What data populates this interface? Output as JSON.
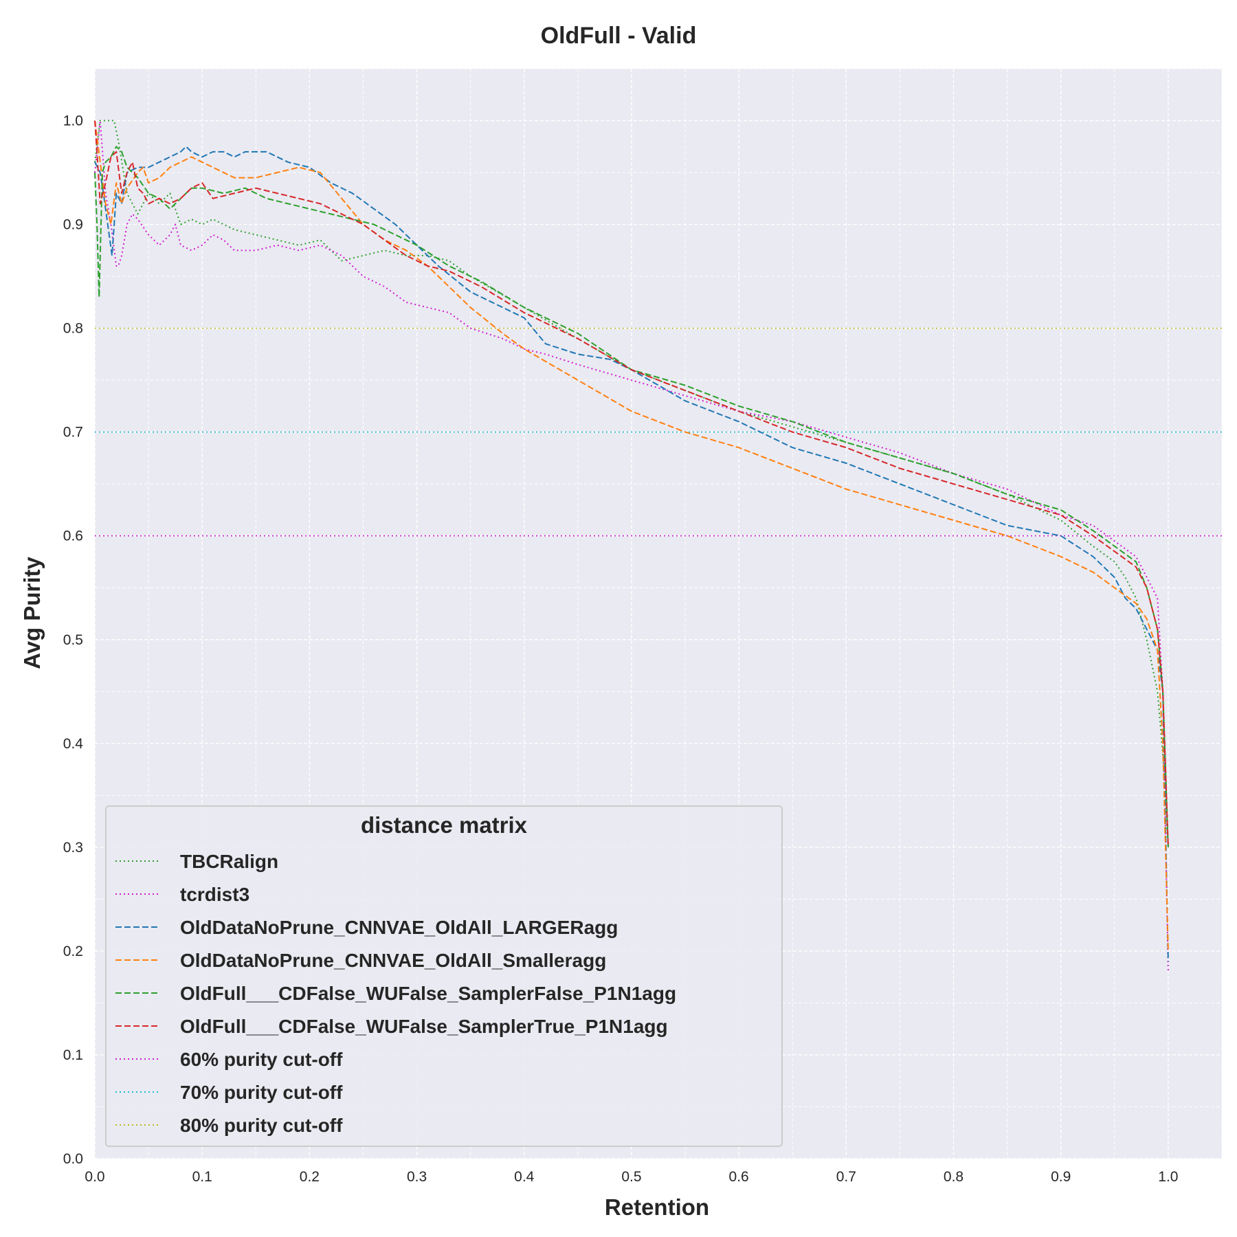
{
  "chart_data": {
    "type": "line",
    "title": "OldFull - Valid",
    "xlabel": "Retention",
    "ylabel": "Avg Purity",
    "xlim": [
      0.0,
      1.05
    ],
    "ylim": [
      0.0,
      1.05
    ],
    "xticks": [
      0.0,
      0.1,
      0.2,
      0.3,
      0.4,
      0.5,
      0.6,
      0.7,
      0.8,
      0.9,
      1.0
    ],
    "yticks": [
      0.0,
      0.1,
      0.2,
      0.3,
      0.4,
      0.5,
      0.6,
      0.7,
      0.8,
      0.9,
      1.0
    ],
    "xtick_labels": [
      "0.0",
      "0.1",
      "0.2",
      "0.3",
      "0.4",
      "0.5",
      "0.6",
      "0.7",
      "0.8",
      "0.9",
      "1.0"
    ],
    "ytick_labels": [
      "0.0",
      "0.1",
      "0.2",
      "0.3",
      "0.4",
      "0.5",
      "0.6",
      "0.7",
      "0.8",
      "0.9",
      "1.0"
    ],
    "grid": true,
    "legend_title": "distance matrix",
    "legend_position": "lower-left",
    "series": [
      {
        "name": "TBCRalign",
        "color": "#2ca02c",
        "style": "dotted",
        "x": [
          0.0,
          0.005,
          0.01,
          0.018,
          0.022,
          0.03,
          0.04,
          0.05,
          0.06,
          0.07,
          0.08,
          0.09,
          0.1,
          0.11,
          0.12,
          0.13,
          0.15,
          0.17,
          0.19,
          0.21,
          0.23,
          0.25,
          0.27,
          0.29,
          0.31,
          0.33,
          0.35,
          0.4,
          0.45,
          0.5,
          0.55,
          0.6,
          0.65,
          0.7,
          0.75,
          0.8,
          0.85,
          0.9,
          0.93,
          0.95,
          0.96,
          0.97,
          0.98,
          0.99,
          0.995,
          1.0
        ],
        "y": [
          0.96,
          1.0,
          1.0,
          1.0,
          0.98,
          0.93,
          0.91,
          0.93,
          0.92,
          0.93,
          0.9,
          0.905,
          0.9,
          0.905,
          0.9,
          0.895,
          0.89,
          0.885,
          0.88,
          0.885,
          0.865,
          0.87,
          0.875,
          0.87,
          0.87,
          0.865,
          0.85,
          0.82,
          0.79,
          0.76,
          0.74,
          0.72,
          0.705,
          0.69,
          0.675,
          0.66,
          0.64,
          0.615,
          0.59,
          0.575,
          0.56,
          0.54,
          0.5,
          0.45,
          0.39,
          0.3
        ]
      },
      {
        "name": "tcrdist3",
        "color": "#d01cd0",
        "style": "dotted",
        "x": [
          0.0,
          0.005,
          0.01,
          0.015,
          0.02,
          0.022,
          0.025,
          0.03,
          0.035,
          0.04,
          0.05,
          0.06,
          0.07,
          0.075,
          0.08,
          0.09,
          0.1,
          0.11,
          0.12,
          0.13,
          0.15,
          0.17,
          0.19,
          0.21,
          0.23,
          0.25,
          0.27,
          0.29,
          0.31,
          0.33,
          0.35,
          0.38,
          0.4,
          0.42,
          0.45,
          0.5,
          0.55,
          0.6,
          0.65,
          0.7,
          0.75,
          0.8,
          0.85,
          0.9,
          0.93,
          0.95,
          0.97,
          0.98,
          0.99,
          0.995,
          1.0
        ],
        "y": [
          0.95,
          1.0,
          0.93,
          0.9,
          0.86,
          0.86,
          0.87,
          0.9,
          0.91,
          0.905,
          0.89,
          0.88,
          0.89,
          0.9,
          0.88,
          0.875,
          0.88,
          0.89,
          0.885,
          0.875,
          0.875,
          0.88,
          0.875,
          0.88,
          0.87,
          0.85,
          0.84,
          0.825,
          0.82,
          0.815,
          0.8,
          0.79,
          0.78,
          0.775,
          0.765,
          0.75,
          0.735,
          0.72,
          0.71,
          0.695,
          0.68,
          0.66,
          0.645,
          0.62,
          0.61,
          0.595,
          0.58,
          0.56,
          0.54,
          0.45,
          0.18
        ]
      },
      {
        "name": "OldDataNoPrune_CNNVAE_OldAll_LARGERagg",
        "color": "#1f77b4",
        "style": "dashed",
        "x": [
          0.0,
          0.005,
          0.008,
          0.012,
          0.016,
          0.02,
          0.025,
          0.03,
          0.04,
          0.05,
          0.06,
          0.07,
          0.08,
          0.085,
          0.09,
          0.1,
          0.11,
          0.12,
          0.13,
          0.14,
          0.16,
          0.18,
          0.2,
          0.22,
          0.24,
          0.26,
          0.28,
          0.3,
          0.32,
          0.35,
          0.4,
          0.42,
          0.45,
          0.48,
          0.5,
          0.55,
          0.6,
          0.65,
          0.7,
          0.75,
          0.8,
          0.85,
          0.9,
          0.93,
          0.95,
          0.96,
          0.97,
          0.98,
          0.99,
          0.995,
          1.0
        ],
        "y": [
          0.96,
          0.95,
          0.93,
          0.9,
          0.87,
          0.93,
          0.92,
          0.95,
          0.955,
          0.955,
          0.96,
          0.965,
          0.97,
          0.975,
          0.97,
          0.965,
          0.97,
          0.97,
          0.965,
          0.97,
          0.97,
          0.96,
          0.955,
          0.94,
          0.93,
          0.915,
          0.9,
          0.88,
          0.86,
          0.835,
          0.81,
          0.785,
          0.775,
          0.77,
          0.76,
          0.73,
          0.71,
          0.685,
          0.67,
          0.65,
          0.63,
          0.61,
          0.6,
          0.58,
          0.56,
          0.54,
          0.53,
          0.51,
          0.49,
          0.45,
          0.19
        ]
      },
      {
        "name": "OldDataNoPrune_CNNVAE_OldAll_Smalleragg",
        "color": "#ff7f0e",
        "style": "dashed",
        "x": [
          0.0,
          0.005,
          0.01,
          0.015,
          0.02,
          0.025,
          0.03,
          0.04,
          0.045,
          0.05,
          0.06,
          0.07,
          0.08,
          0.09,
          0.1,
          0.11,
          0.13,
          0.15,
          0.17,
          0.19,
          0.21,
          0.23,
          0.25,
          0.27,
          0.29,
          0.31,
          0.33,
          0.35,
          0.38,
          0.4,
          0.45,
          0.5,
          0.55,
          0.6,
          0.65,
          0.7,
          0.75,
          0.8,
          0.85,
          0.9,
          0.93,
          0.95,
          0.97,
          0.98,
          0.99,
          0.995,
          1.0
        ],
        "y": [
          1.0,
          0.96,
          0.92,
          0.9,
          0.94,
          0.92,
          0.935,
          0.95,
          0.955,
          0.94,
          0.945,
          0.955,
          0.96,
          0.965,
          0.96,
          0.955,
          0.945,
          0.945,
          0.95,
          0.955,
          0.95,
          0.925,
          0.9,
          0.885,
          0.875,
          0.86,
          0.84,
          0.82,
          0.795,
          0.78,
          0.75,
          0.72,
          0.7,
          0.685,
          0.665,
          0.645,
          0.63,
          0.615,
          0.6,
          0.58,
          0.565,
          0.55,
          0.535,
          0.52,
          0.49,
          0.4,
          0.2
        ]
      },
      {
        "name": "OldFull___CDFalse_WUFalse_SamplerFalse_P1N1agg",
        "color": "#2ca02c",
        "style": "dashed",
        "x": [
          0.0,
          0.002,
          0.004,
          0.007,
          0.01,
          0.015,
          0.02,
          0.025,
          0.03,
          0.035,
          0.04,
          0.05,
          0.06,
          0.07,
          0.08,
          0.09,
          0.1,
          0.12,
          0.14,
          0.16,
          0.18,
          0.2,
          0.22,
          0.24,
          0.26,
          0.28,
          0.3,
          0.33,
          0.36,
          0.4,
          0.45,
          0.5,
          0.55,
          0.6,
          0.65,
          0.7,
          0.75,
          0.8,
          0.85,
          0.9,
          0.93,
          0.95,
          0.97,
          0.98,
          0.99,
          0.995,
          1.0
        ],
        "y": [
          0.95,
          0.9,
          0.83,
          0.95,
          0.96,
          0.965,
          0.975,
          0.97,
          0.955,
          0.95,
          0.945,
          0.93,
          0.925,
          0.915,
          0.925,
          0.935,
          0.935,
          0.93,
          0.935,
          0.925,
          0.92,
          0.915,
          0.91,
          0.905,
          0.9,
          0.89,
          0.88,
          0.86,
          0.845,
          0.82,
          0.795,
          0.76,
          0.745,
          0.725,
          0.71,
          0.69,
          0.675,
          0.66,
          0.64,
          0.625,
          0.605,
          0.59,
          0.575,
          0.55,
          0.51,
          0.45,
          0.3
        ]
      },
      {
        "name": "OldFull___CDFalse_WUFalse_SamplerTrue_P1N1agg",
        "color": "#d62728",
        "style": "dashed",
        "x": [
          0.0,
          0.002,
          0.005,
          0.01,
          0.015,
          0.02,
          0.025,
          0.03,
          0.035,
          0.04,
          0.045,
          0.05,
          0.06,
          0.07,
          0.08,
          0.09,
          0.1,
          0.11,
          0.13,
          0.15,
          0.17,
          0.19,
          0.21,
          0.23,
          0.25,
          0.27,
          0.29,
          0.31,
          0.33,
          0.36,
          0.4,
          0.45,
          0.5,
          0.55,
          0.6,
          0.65,
          0.7,
          0.75,
          0.8,
          0.85,
          0.9,
          0.93,
          0.95,
          0.97,
          0.98,
          0.99,
          0.995,
          1.0
        ],
        "y": [
          1.0,
          0.97,
          0.92,
          0.94,
          0.965,
          0.97,
          0.93,
          0.95,
          0.96,
          0.935,
          0.93,
          0.92,
          0.925,
          0.92,
          0.925,
          0.935,
          0.94,
          0.925,
          0.93,
          0.935,
          0.93,
          0.925,
          0.92,
          0.91,
          0.9,
          0.885,
          0.87,
          0.86,
          0.855,
          0.84,
          0.815,
          0.79,
          0.76,
          0.74,
          0.72,
          0.7,
          0.685,
          0.665,
          0.65,
          0.635,
          0.62,
          0.6,
          0.585,
          0.57,
          0.55,
          0.51,
          0.45,
          0.3
        ]
      }
    ],
    "reference_lines": [
      {
        "name": "60% purity cut-off",
        "y": 0.6,
        "color": "#d01cd0",
        "style": "dotted"
      },
      {
        "name": "70% purity cut-off",
        "y": 0.7,
        "color": "#17becf",
        "style": "dotted"
      },
      {
        "name": "80% purity cut-off",
        "y": 0.8,
        "color": "#bcbd22",
        "style": "dotted"
      }
    ],
    "colors": {
      "plot_background": "#eaeaf2",
      "grid": "#ffffff",
      "legend_frame": "#cccccc"
    }
  }
}
